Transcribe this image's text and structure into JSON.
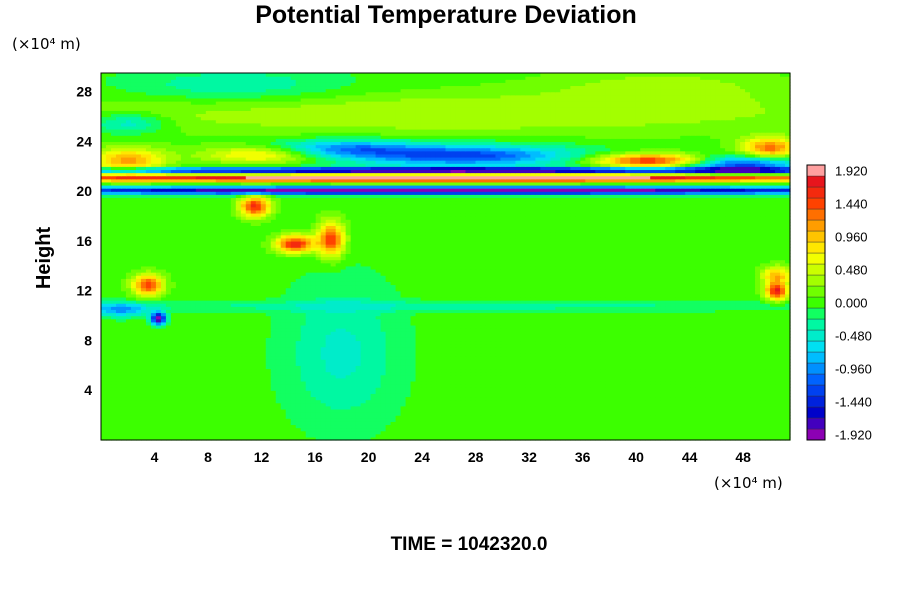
{
  "chart_data": {
    "type": "heatmap",
    "title": "Potential Temperature Deviation",
    "ylabel": "Height",
    "xlabel": "",
    "x_unit": "(×10⁴ m)",
    "y_unit": "(×10⁴ m)",
    "xlim": [
      0,
      51.5
    ],
    "ylim": [
      0,
      29.5
    ],
    "x_ticks": [
      4,
      8,
      12,
      16,
      20,
      24,
      28,
      32,
      36,
      40,
      44,
      48
    ],
    "y_ticks": [
      4,
      8,
      12,
      16,
      20,
      24,
      28
    ],
    "colorbar": {
      "min": -1.92,
      "max": 1.92,
      "step": 0.16,
      "labels": [
        "1.920",
        "1.440",
        "0.960",
        "0.480",
        "0.000",
        "-0.480",
        "-0.960",
        "-1.440",
        "-1.920"
      ]
    },
    "field": {
      "background": 0.0,
      "features": [
        {
          "x": 26,
          "y": 21.1,
          "sx": 26,
          "sy": 0.22,
          "amp": 2.2
        },
        {
          "x": 26,
          "y": 20.1,
          "sx": 26,
          "sy": 0.22,
          "amp": -2.2
        },
        {
          "x": 26,
          "y": 21.7,
          "sx": 24,
          "sy": 0.18,
          "amp": -2.0
        },
        {
          "x": 41,
          "y": 22.5,
          "sx": 3.0,
          "sy": 0.4,
          "amp": 1.6
        },
        {
          "x": 48,
          "y": 22.2,
          "sx": 3.0,
          "sy": 0.5,
          "amp": -1.3
        },
        {
          "x": 50,
          "y": 23.5,
          "sx": 1.5,
          "sy": 0.6,
          "amp": 1.3
        },
        {
          "x": 27,
          "y": 22.9,
          "sx": 6.0,
          "sy": 0.6,
          "amp": -1.3
        },
        {
          "x": 18,
          "y": 23.5,
          "sx": 4.0,
          "sy": 0.5,
          "amp": -0.9
        },
        {
          "x": 12,
          "y": 23.0,
          "sx": 3.0,
          "sy": 0.5,
          "amp": 0.9
        },
        {
          "x": 2,
          "y": 22.5,
          "sx": 2.0,
          "sy": 0.7,
          "amp": 1.1
        },
        {
          "x": 11.5,
          "y": 18.8,
          "sx": 0.8,
          "sy": 0.6,
          "amp": 1.6
        },
        {
          "x": 14.5,
          "y": 15.8,
          "sx": 1.0,
          "sy": 0.5,
          "amp": 1.7
        },
        {
          "x": 17.2,
          "y": 16.2,
          "sx": 0.7,
          "sy": 1.0,
          "amp": 1.5
        },
        {
          "x": 3.5,
          "y": 12.5,
          "sx": 0.8,
          "sy": 0.6,
          "amp": 1.5
        },
        {
          "x": 50.5,
          "y": 12.0,
          "sx": 0.6,
          "sy": 0.5,
          "amp": 1.7
        },
        {
          "x": 50.5,
          "y": 13.3,
          "sx": 0.8,
          "sy": 0.5,
          "amp": 1.0
        },
        {
          "x": 4.3,
          "y": 9.8,
          "sx": 0.4,
          "sy": 0.35,
          "amp": -2.0
        },
        {
          "x": 1.5,
          "y": 10.5,
          "sx": 1.5,
          "sy": 0.4,
          "amp": -0.9
        },
        {
          "x": 26,
          "y": 26.3,
          "sx": 22,
          "sy": 1.2,
          "amp": 0.4
        },
        {
          "x": 10,
          "y": 28.5,
          "sx": 6,
          "sy": 1.0,
          "amp": -0.4
        },
        {
          "x": 42,
          "y": 28.5,
          "sx": 6,
          "sy": 1.0,
          "amp": 0.3
        },
        {
          "x": 18,
          "y": 7.0,
          "sx": 3.0,
          "sy": 4.0,
          "amp": -0.45
        },
        {
          "x": 26,
          "y": 10.8,
          "sx": 25,
          "sy": 0.3,
          "amp": -0.3
        },
        {
          "x": 2,
          "y": 25.5,
          "sx": 2,
          "sy": 0.6,
          "amp": -0.6
        }
      ]
    }
  },
  "footer": {
    "time_label": "TIME = 1042320.0"
  }
}
